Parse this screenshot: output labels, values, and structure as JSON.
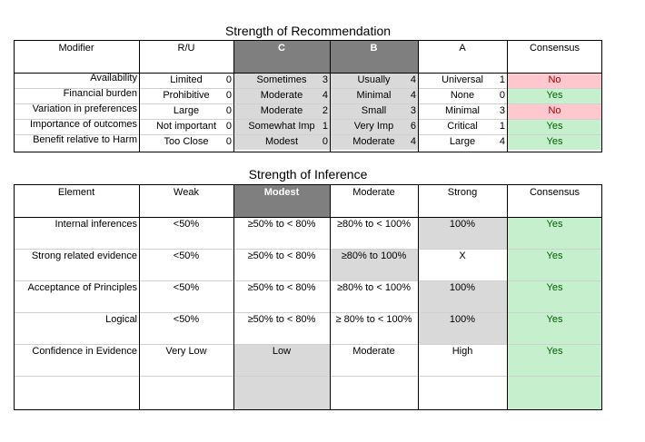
{
  "recommendation": {
    "title": "Strength of Recommendation",
    "headers": [
      "Modifier",
      "R/U",
      "C",
      "B",
      "A",
      "Consensus"
    ],
    "rows": [
      {
        "label": "Availability",
        "ru": {
          "text": "Limited",
          "score": "0"
        },
        "c": {
          "text": "Sometimes",
          "score": "3"
        },
        "b": {
          "text": "Usually",
          "score": "4"
        },
        "a": {
          "text": "Universal",
          "score": "1"
        },
        "consensus": "No"
      },
      {
        "label": "Financial burden",
        "ru": {
          "text": "Prohibitive",
          "score": "0"
        },
        "c": {
          "text": "Moderate",
          "score": "4"
        },
        "b": {
          "text": "Minimal",
          "score": "4"
        },
        "a": {
          "text": "None",
          "score": "0"
        },
        "consensus": "Yes"
      },
      {
        "label": "Variation in preferences",
        "ru": {
          "text": "Large",
          "score": "0"
        },
        "c": {
          "text": "Moderate",
          "score": "2"
        },
        "b": {
          "text": "Small",
          "score": "3"
        },
        "a": {
          "text": "Minimal",
          "score": "3"
        },
        "consensus": "No"
      },
      {
        "label": "Importance  of outcomes",
        "ru": {
          "text": "Not important",
          "score": "0"
        },
        "c": {
          "text": "Somewhat Imp",
          "score": "1"
        },
        "b": {
          "text": "Very Imp",
          "score": "6"
        },
        "a": {
          "text": "Critical",
          "score": "1"
        },
        "consensus": "Yes"
      },
      {
        "label": "Benefit relative to Harm",
        "ru": {
          "text": "Too Close",
          "score": "0"
        },
        "c": {
          "text": "Modest",
          "score": "0"
        },
        "b": {
          "text": "Moderate",
          "score": "4"
        },
        "a": {
          "text": "Large",
          "score": "4"
        },
        "consensus": "Yes"
      }
    ]
  },
  "inference": {
    "title": "Strength of Inference",
    "headers": [
      "Element",
      "Weak",
      "Modest",
      "Moderate",
      "Strong",
      "Consensus"
    ],
    "rows": [
      {
        "label": "Internal inferences",
        "weak": "<50%",
        "modest": "≥50% to < 80%",
        "moderate": "≥80% to < 100%",
        "strong": "100%",
        "consensus": "Yes"
      },
      {
        "label": "Strong related evidence",
        "weak": "<50%",
        "modest": "≥50% to < 80%",
        "moderate": "≥80% to 100%",
        "strong": "X",
        "consensus": "Yes"
      },
      {
        "label": "Acceptance of Principles",
        "weak": "<50%",
        "modest": "≥50% to < 80%",
        "moderate": "≥80% to < 100%",
        "strong": "100%",
        "consensus": "Yes"
      },
      {
        "label": "Logical",
        "weak": "<50%",
        "modest": "≥50% to < 80%",
        "moderate": "≥ 80% to < 100%",
        "strong": "100%",
        "consensus": "Yes"
      },
      {
        "label": "Confidence in Evidence",
        "weak": "Very Low",
        "modest": "Low",
        "moderate": "Moderate",
        "strong": "High",
        "consensus": "Yes"
      }
    ]
  }
}
